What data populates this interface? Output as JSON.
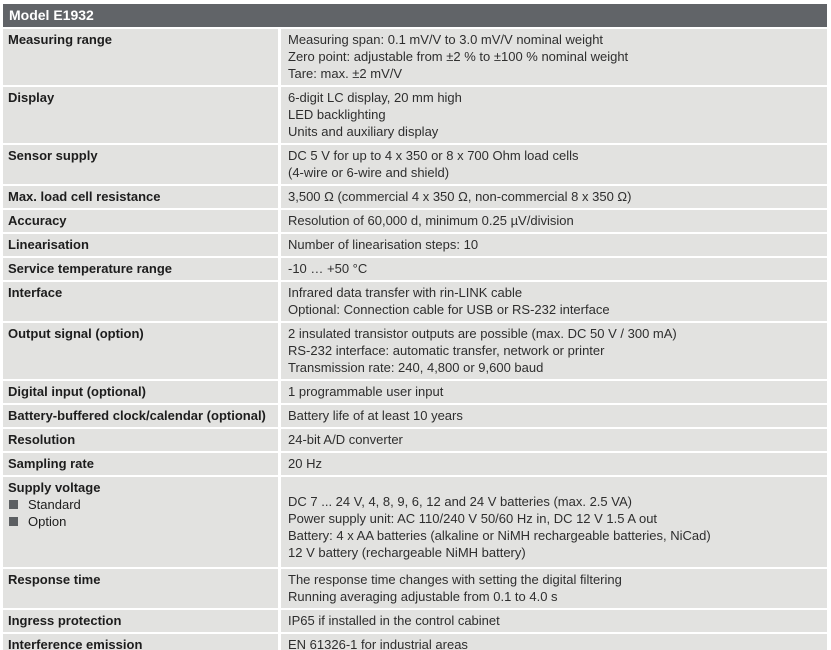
{
  "header": {
    "title": "Model E1932"
  },
  "colors": {
    "header_bg": "#616468",
    "row_bg": "#e2e2e0",
    "bullet": "#5c5f62"
  },
  "rows": [
    {
      "label": "Measuring range",
      "values": [
        "Measuring span: 0.1 mV/V to 3.0 mV/V nominal weight",
        "Zero point: adjustable from ±2 % to ±100 % nominal weight",
        "Tare: max. ±2 mV/V"
      ]
    },
    {
      "label": "Display",
      "values": [
        "6-digit LC display, 20 mm high",
        "LED backlighting",
        "Units and auxiliary display"
      ]
    },
    {
      "label": "Sensor supply",
      "values": [
        "DC 5 V for up to 4 x 350 or 8 x 700 Ohm load cells",
        "(4-wire or 6-wire and shield)"
      ]
    },
    {
      "label": "Max. load cell resistance",
      "values": [
        "3,500 Ω (commercial 4 x 350 Ω, non-commercial 8 x 350 Ω)"
      ]
    },
    {
      "label": "Accuracy",
      "values": [
        "Resolution of 60,000 d, minimum 0.25 µV/division"
      ]
    },
    {
      "label": "Linearisation",
      "values": [
        "Number of linearisation steps: 10"
      ]
    },
    {
      "label": "Service temperature range",
      "values": [
        "-10 … +50 °C"
      ]
    },
    {
      "label": "Interface",
      "values": [
        "Infrared data transfer with rin-LINK cable",
        "Optional: Connection cable for USB or RS-232 interface"
      ]
    },
    {
      "label": "Output signal (option)",
      "values": [
        "2 insulated transistor outputs are possible (max. DC 50 V / 300 mA)",
        "RS-232 interface: automatic transfer, network or printer",
        "Transmission rate: 240, 4,800 or 9,600 baud"
      ]
    },
    {
      "label": "Digital input (optional)",
      "values": [
        "1 programmable user input"
      ]
    },
    {
      "label": "Battery-buffered clock/calendar (optional)",
      "values": [
        "Battery life of at least 10 years"
      ]
    },
    {
      "label": "Resolution",
      "values": [
        "24-bit A/D converter"
      ]
    },
    {
      "label": "Sampling rate",
      "values": [
        "20 Hz"
      ]
    },
    {
      "label": "Supply voltage",
      "sub_items": [
        "Standard",
        "Option"
      ],
      "values": [
        "DC 7 ... 24 V, 4, 8, 9, 6, 12 and 24 V batteries (max. 2.5 VA)",
        "Power supply unit: AC 110/240 V 50/60 Hz in, DC 12 V 1.5 A out",
        "Battery: 4 x AA batteries (alkaline or NiMH rechargeable batteries, NiCad)",
        "12 V battery (rechargeable NiMH battery)"
      ]
    },
    {
      "label": "Response time",
      "values": [
        "The response time changes with setting the digital filtering",
        "Running averaging adjustable from 0.1 to 4.0 s"
      ]
    },
    {
      "label": "Ingress protection",
      "values": [
        "IP65 if installed in the control cabinet"
      ]
    },
    {
      "label": "Interference emission",
      "values": [
        "EN 61326-1 for industrial areas"
      ]
    }
  ]
}
